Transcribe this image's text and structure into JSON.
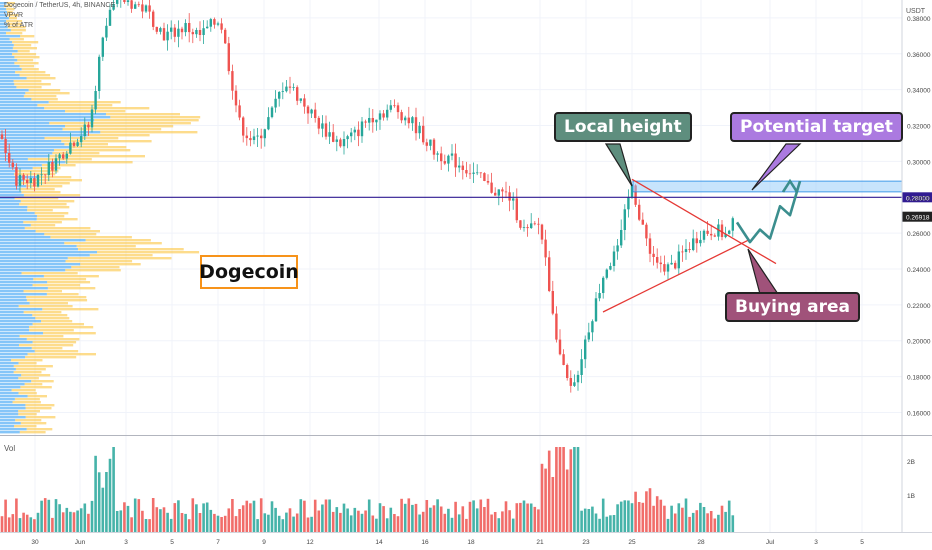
{
  "header": {
    "symbol_line": "Dogecoin / TetherUS, 4h, BINANCE",
    "indicator_1": "VPVR",
    "indicator_2": "% of ATR",
    "currency": "USDT",
    "volume_label": "Vol"
  },
  "annotations": {
    "asset_label": "Dogecoin",
    "local_height": "Local height",
    "potential_target": "Potential target",
    "buying_area": "Buying area"
  },
  "colors": {
    "up_candle": "#26a69a",
    "down_candle": "#ef5350",
    "horizontal_line": "#311b92",
    "triangle_lines": "#e53935",
    "projection": "#3b8e8e",
    "target_zone": "#90caf9",
    "vpvr_blue": "#2196f3",
    "vpvr_yellow": "#fbc02d",
    "local_height_box": "#5e8e7e",
    "potential_target_box": "#ab7ae0",
    "buying_area_box": "#a0527a",
    "asset_box_border": "#f7931a"
  },
  "chart_data": [
    {
      "type": "candlestick",
      "title": "Dogecoin / TetherUS, 4h, BINANCE",
      "y_axis": {
        "ticks": [
          "0.38000",
          "0.36000",
          "0.34000",
          "0.32000",
          "0.30000",
          "0.28000",
          "0.26000",
          "0.24000",
          "0.22000",
          "0.20000",
          "0.18000",
          "0.16000"
        ],
        "range": [
          0.148,
          0.39
        ],
        "currency": "USDT"
      },
      "x_axis": {
        "ticks": [
          "30",
          "Jun",
          "3",
          "5",
          "7",
          "9",
          "12",
          "14",
          "16",
          "18",
          "21",
          "23",
          "25",
          "28",
          "Jul",
          "3",
          "5"
        ]
      },
      "price_labels": {
        "horizontal_level": "0.28000",
        "last_price": "0.26918"
      },
      "horizontal_level": 0.28,
      "last_price": 0.26918,
      "target_zone": [
        0.283,
        0.289
      ],
      "candles_summary": {
        "start": "May 29",
        "end": "Jun 29",
        "high_region": 0.39,
        "low": 0.164,
        "local_height": 0.29
      },
      "triangle": {
        "upper_line": [
          [
            "Jun 25",
            0.29
          ],
          [
            "Jun 29",
            0.256
          ]
        ],
        "lower_line": [
          [
            "Jun 23",
            0.216
          ],
          [
            "Jun 29",
            0.256
          ]
        ]
      },
      "projection_path": [
        0.266,
        0.255,
        0.262,
        0.257,
        0.275,
        0.27,
        0.289,
        0.28
      ]
    },
    {
      "type": "bar",
      "title": "Vol",
      "y_axis": {
        "ticks": [
          "2B",
          "1B"
        ]
      },
      "series": [
        {
          "name": "Vol"
        }
      ]
    }
  ]
}
